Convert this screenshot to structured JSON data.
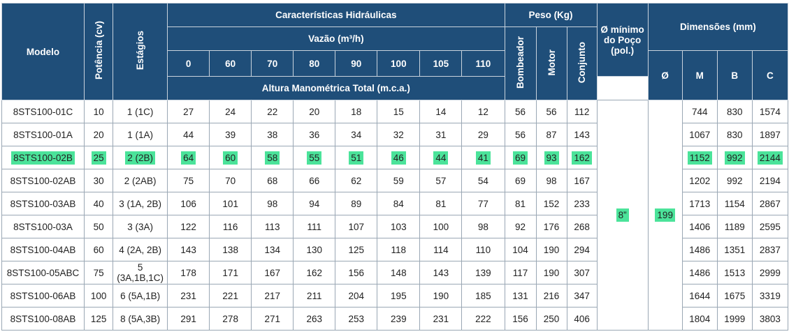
{
  "headers": {
    "modelo": "Modelo",
    "potencia": "Potência (cv)",
    "estagios": "Estágios",
    "caracteristicas": "Características Hidráulicas",
    "vazao": "Vazão (m³/h)",
    "flows": [
      "0",
      "60",
      "70",
      "80",
      "90",
      "100",
      "105",
      "110"
    ],
    "altura": "Altura Manométrica Total (m.c.a.)",
    "peso": "Peso (Kg)",
    "bombeador": "Bombeador",
    "motor": "Motor",
    "conjunto": "Conjunto",
    "poco_line1": "Ø mínimo",
    "poco_line2": "do Poço",
    "poco_line3": "(pol.)",
    "dimensoes": "Dimensões (mm)",
    "dim_o": "Ø",
    "dim_m": "M",
    "dim_b": "B",
    "dim_c": "C"
  },
  "poco_value": "8”",
  "diam_value": "199",
  "highlight_color": "#4be39a",
  "header_color": "#1f4e79",
  "rows": [
    {
      "modelo": "8STS100-01C",
      "pot": "10",
      "est": "1 (1C)",
      "h": [
        "27",
        "24",
        "22",
        "20",
        "18",
        "15",
        "14",
        "12"
      ],
      "bomb": "56",
      "motor": "56",
      "conj": "112",
      "m": "744",
      "b": "830",
      "c": "1574",
      "hl": false
    },
    {
      "modelo": "8STS100-01A",
      "pot": "20",
      "est": "1 (1A)",
      "h": [
        "44",
        "39",
        "38",
        "36",
        "34",
        "32",
        "31",
        "29"
      ],
      "bomb": "56",
      "motor": "87",
      "conj": "143",
      "m": "1067",
      "b": "830",
      "c": "1897",
      "hl": false
    },
    {
      "modelo": "8STS100-02B",
      "pot": "25",
      "est": "2 (2B)",
      "h": [
        "64",
        "60",
        "58",
        "55",
        "51",
        "46",
        "44",
        "41"
      ],
      "bomb": "69",
      "motor": "93",
      "conj": "162",
      "m": "1152",
      "b": "992",
      "c": "2144",
      "hl": true
    },
    {
      "modelo": "8STS100-02AB",
      "pot": "30",
      "est": "2 (2AB)",
      "h": [
        "75",
        "70",
        "68",
        "66",
        "62",
        "59",
        "57",
        "54"
      ],
      "bomb": "69",
      "motor": "98",
      "conj": "167",
      "m": "1202",
      "b": "992",
      "c": "2194",
      "hl": false
    },
    {
      "modelo": "8STS100-03AB",
      "pot": "40",
      "est": "3 (1A, 2B)",
      "h": [
        "106",
        "101",
        "98",
        "94",
        "89",
        "84",
        "81",
        "77"
      ],
      "bomb": "81",
      "motor": "152",
      "conj": "233",
      "m": "1713",
      "b": "1154",
      "c": "2867",
      "hl": false
    },
    {
      "modelo": "8STS100-03A",
      "pot": "50",
      "est": "3 (3A)",
      "h": [
        "122",
        "116",
        "113",
        "111",
        "107",
        "103",
        "100",
        "98"
      ],
      "bomb": "92",
      "motor": "176",
      "conj": "268",
      "m": "1406",
      "b": "1189",
      "c": "2595",
      "hl": false
    },
    {
      "modelo": "8STS100-04AB",
      "pot": "60",
      "est": "4 (2A, 2B)",
      "h": [
        "143",
        "138",
        "134",
        "130",
        "125",
        "118",
        "114",
        "110"
      ],
      "bomb": "104",
      "motor": "190",
      "conj": "294",
      "m": "1486",
      "b": "1351",
      "c": "2837",
      "hl": false
    },
    {
      "modelo": "8STS100-05ABC",
      "pot": "75",
      "est": "5 (3A,1B,1C)",
      "h": [
        "178",
        "171",
        "167",
        "162",
        "156",
        "148",
        "143",
        "139"
      ],
      "bomb": "117",
      "motor": "190",
      "conj": "307",
      "m": "1486",
      "b": "1513",
      "c": "2999",
      "hl": false
    },
    {
      "modelo": "8STS100-06AB",
      "pot": "100",
      "est": "6 (5A,1B)",
      "h": [
        "231",
        "221",
        "217",
        "211",
        "204",
        "195",
        "190",
        "185"
      ],
      "bomb": "131",
      "motor": "216",
      "conj": "347",
      "m": "1644",
      "b": "1675",
      "c": "3319",
      "hl": false
    },
    {
      "modelo": "8STS100-08AB",
      "pot": "125",
      "est": "8 (5A,3B)",
      "h": [
        "291",
        "278",
        "271",
        "263",
        "253",
        "239",
        "231",
        "222"
      ],
      "bomb": "156",
      "motor": "250",
      "conj": "406",
      "m": "1804",
      "b": "1999",
      "c": "3803",
      "hl": false
    }
  ]
}
